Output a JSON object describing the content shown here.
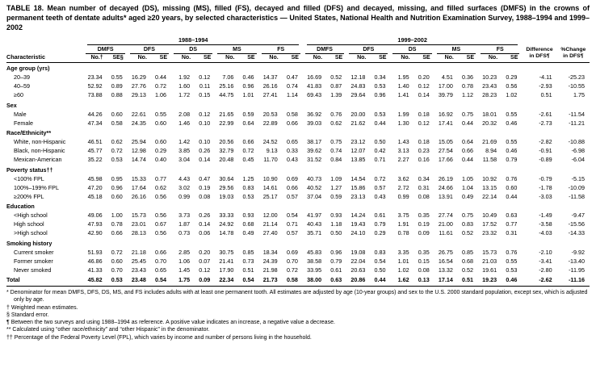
{
  "title": "TABLE 18. Mean number of decayed (DS), missing (MS), filled (FS), decayed and filled (DFS) and decayed, missing, and filled surfaces (DMFS) in the crowns of permanent teeth of dentate adults* aged ≥20 years, by selected characteristics — United States, National Health and Nutrition Examination Survey, 1988–1994 and 1999–2002",
  "table": {
    "characteristic_header": "Characteristic",
    "periods": [
      "1988–1994",
      "1999–2002"
    ],
    "measures": [
      "DMFS",
      "DFS",
      "DS",
      "MS",
      "FS"
    ],
    "no_label": "No.",
    "se_label": "SE",
    "no_label_first": "No.†",
    "se_label_first": "SE§",
    "difference_header": [
      "Difference",
      "in DFS¶"
    ],
    "pct_change_header": [
      "%Change",
      "in DFS¶"
    ],
    "groups": [
      {
        "label": "Age group (yrs)",
        "rows": [
          {
            "label": "20–39",
            "values": [
              "23.34",
              "0.55",
              "16.29",
              "0.44",
              "1.92",
              "0.12",
              "7.06",
              "0.46",
              "14.37",
              "0.47",
              "16.69",
              "0.52",
              "12.18",
              "0.34",
              "1.95",
              "0.20",
              "4.51",
              "0.36",
              "10.23",
              "0.29",
              "-4.11",
              "-25.23"
            ]
          },
          {
            "label": "40–59",
            "values": [
              "52.92",
              "0.89",
              "27.76",
              "0.72",
              "1.60",
              "0.11",
              "25.16",
              "0.96",
              "26.16",
              "0.74",
              "41.83",
              "0.87",
              "24.83",
              "0.53",
              "1.40",
              "0.12",
              "17.00",
              "0.78",
              "23.43",
              "0.56",
              "-2.93",
              "-10.55"
            ]
          },
          {
            "label": "≥60",
            "values": [
              "73.88",
              "0.88",
              "29.13",
              "1.06",
              "1.72",
              "0.15",
              "44.75",
              "1.01",
              "27.41",
              "1.14",
              "69.43",
              "1.39",
              "29.64",
              "0.96",
              "1.41",
              "0.14",
              "39.79",
              "1.12",
              "28.23",
              "1.02",
              "0.51",
              "1.75"
            ]
          }
        ]
      },
      {
        "label": "Sex",
        "rows": [
          {
            "label": "Male",
            "values": [
              "44.26",
              "0.60",
              "22.61",
              "0.55",
              "2.08",
              "0.12",
              "21.65",
              "0.59",
              "20.53",
              "0.58",
              "36.92",
              "0.76",
              "20.00",
              "0.53",
              "1.99",
              "0.18",
              "16.92",
              "0.75",
              "18.01",
              "0.55",
              "-2.61",
              "-11.54"
            ]
          },
          {
            "label": "Female",
            "values": [
              "47.34",
              "0.58",
              "24.35",
              "0.60",
              "1.46",
              "0.10",
              "22.99",
              "0.64",
              "22.89",
              "0.66",
              "39.03",
              "0.62",
              "21.62",
              "0.44",
              "1.30",
              "0.12",
              "17.41",
              "0.44",
              "20.32",
              "0.46",
              "-2.73",
              "-11.21"
            ]
          }
        ]
      },
      {
        "label": "Race/Ethnicity**",
        "rows": [
          {
            "label": "White, non-Hispanic",
            "values": [
              "46.51",
              "0.62",
              "25.94",
              "0.60",
              "1.42",
              "0.10",
              "20.56",
              "0.66",
              "24.52",
              "0.65",
              "38.17",
              "0.75",
              "23.12",
              "0.50",
              "1.43",
              "0.18",
              "15.05",
              "0.64",
              "21.69",
              "0.55",
              "-2.82",
              "-10.88"
            ]
          },
          {
            "label": "Black, non-Hispanic",
            "values": [
              "45.77",
              "0.72",
              "12.98",
              "0.29",
              "3.85",
              "0.26",
              "32.79",
              "0.72",
              "9.13",
              "0.33",
              "39.62",
              "0.74",
              "12.07",
              "0.42",
              "3.13",
              "0.23",
              "27.54",
              "0.66",
              "8.94",
              "0.46",
              "-0.91",
              "-6.98"
            ]
          },
          {
            "label": "Mexican-American",
            "values": [
              "35.22",
              "0.53",
              "14.74",
              "0.40",
              "3.04",
              "0.14",
              "20.48",
              "0.45",
              "11.70",
              "0.43",
              "31.52",
              "0.84",
              "13.85",
              "0.71",
              "2.27",
              "0.16",
              "17.66",
              "0.44",
              "11.58",
              "0.79",
              "-0.89",
              "-6.04"
            ]
          }
        ]
      },
      {
        "label": "Poverty status††",
        "rows": [
          {
            "label": "<100% FPL",
            "values": [
              "45.98",
              "0.95",
              "15.33",
              "0.77",
              "4.43",
              "0.47",
              "30.64",
              "1.25",
              "10.90",
              "0.69",
              "40.73",
              "1.09",
              "14.54",
              "0.72",
              "3.62",
              "0.34",
              "26.19",
              "1.05",
              "10.92",
              "0.76",
              "-0.79",
              "-5.15"
            ]
          },
          {
            "label": "100%–199% FPL",
            "values": [
              "47.20",
              "0.96",
              "17.64",
              "0.62",
              "3.02",
              "0.19",
              "29.56",
              "0.83",
              "14.61",
              "0.66",
              "40.52",
              "1.27",
              "15.86",
              "0.57",
              "2.72",
              "0.31",
              "24.66",
              "1.04",
              "13.15",
              "0.60",
              "-1.78",
              "-10.09"
            ]
          },
          {
            "label": "≥200% FPL",
            "values": [
              "45.18",
              "0.60",
              "26.16",
              "0.56",
              "0.99",
              "0.08",
              "19.03",
              "0.53",
              "25.17",
              "0.57",
              "37.04",
              "0.59",
              "23.13",
              "0.43",
              "0.99",
              "0.08",
              "13.91",
              "0.49",
              "22.14",
              "0.44",
              "-3.03",
              "-11.58"
            ]
          }
        ]
      },
      {
        "label": "Education",
        "rows": [
          {
            "label": "<High school",
            "values": [
              "49.06",
              "1.00",
              "15.73",
              "0.56",
              "3.73",
              "0.26",
              "33.33",
              "0.93",
              "12.00",
              "0.54",
              "41.97",
              "0.93",
              "14.24",
              "0.61",
              "3.75",
              "0.35",
              "27.74",
              "0.75",
              "10.49",
              "0.63",
              "-1.49",
              "-9.47"
            ]
          },
          {
            "label": "High school",
            "values": [
              "47.93",
              "0.78",
              "23.01",
              "0.67",
              "1.87",
              "0.14",
              "24.92",
              "0.68",
              "21.14",
              "0.71",
              "40.43",
              "1.18",
              "19.43",
              "0.79",
              "1.91",
              "0.19",
              "21.00",
              "0.83",
              "17.52",
              "0.77",
              "-3.58",
              "-15.56"
            ]
          },
          {
            "label": ">High school",
            "values": [
              "42.90",
              "0.66",
              "28.13",
              "0.56",
              "0.73",
              "0.06",
              "14.78",
              "0.49",
              "27.40",
              "0.57",
              "35.71",
              "0.50",
              "24.10",
              "0.29",
              "0.78",
              "0.09",
              "11.61",
              "0.52",
              "23.32",
              "0.31",
              "-4.03",
              "-14.33"
            ]
          }
        ]
      },
      {
        "label": "Smoking history",
        "rows": [
          {
            "label": "Current smoker",
            "values": [
              "51.93",
              "0.72",
              "21.18",
              "0.66",
              "2.85",
              "0.20",
              "30.75",
              "0.85",
              "18.34",
              "0.69",
              "45.83",
              "0.96",
              "19.08",
              "0.83",
              "3.35",
              "0.35",
              "26.75",
              "0.85",
              "15.73",
              "0.76",
              "-2.10",
              "-9.92"
            ]
          },
          {
            "label": "Former smoker",
            "values": [
              "46.86",
              "0.60",
              "25.45",
              "0.70",
              "1.06",
              "0.07",
              "21.41",
              "0.73",
              "24.39",
              "0.70",
              "38.58",
              "0.79",
              "22.04",
              "0.54",
              "1.01",
              "0.15",
              "16.54",
              "0.68",
              "21.03",
              "0.55",
              "-3.41",
              "-13.40"
            ]
          },
          {
            "label": "Never smoked",
            "values": [
              "41.33",
              "0.70",
              "23.43",
              "0.65",
              "1.45",
              "0.12",
              "17.90",
              "0.51",
              "21.98",
              "0.72",
              "33.95",
              "0.61",
              "20.63",
              "0.50",
              "1.02",
              "0.08",
              "13.32",
              "0.52",
              "19.61",
              "0.53",
              "-2.80",
              "-11.95"
            ]
          }
        ]
      }
    ],
    "total": {
      "label": "Total",
      "values": [
        "45.82",
        "0.53",
        "23.48",
        "0.54",
        "1.75",
        "0.09",
        "22.34",
        "0.54",
        "21.73",
        "0.58",
        "38.00",
        "0.63",
        "20.86",
        "0.44",
        "1.62",
        "0.13",
        "17.14",
        "0.51",
        "19.23",
        "0.46",
        "-2.62",
        "-11.16"
      ]
    }
  },
  "footnotes": [
    "* Denominator for mean DMFS, DFS, DS, MS, and FS includes adults with at least one permanent tooth. All estimates are adjusted by age (10-year groups) and sex to the U.S. 2000 standard population, except sex, which is adjusted only by age.",
    "† Weighted mean estimates.",
    "§ Standard error.",
    "¶ Between the two surveys and using 1988–1994 as reference. A positive value indicates an increase, a negative value a decrease.",
    "** Calculated using “other race/ethnicity” and “other Hispanic” in the denominator.",
    "†† Percentage of the Federal Poverty Level (FPL), which varies by income and number of persons living in the household."
  ]
}
